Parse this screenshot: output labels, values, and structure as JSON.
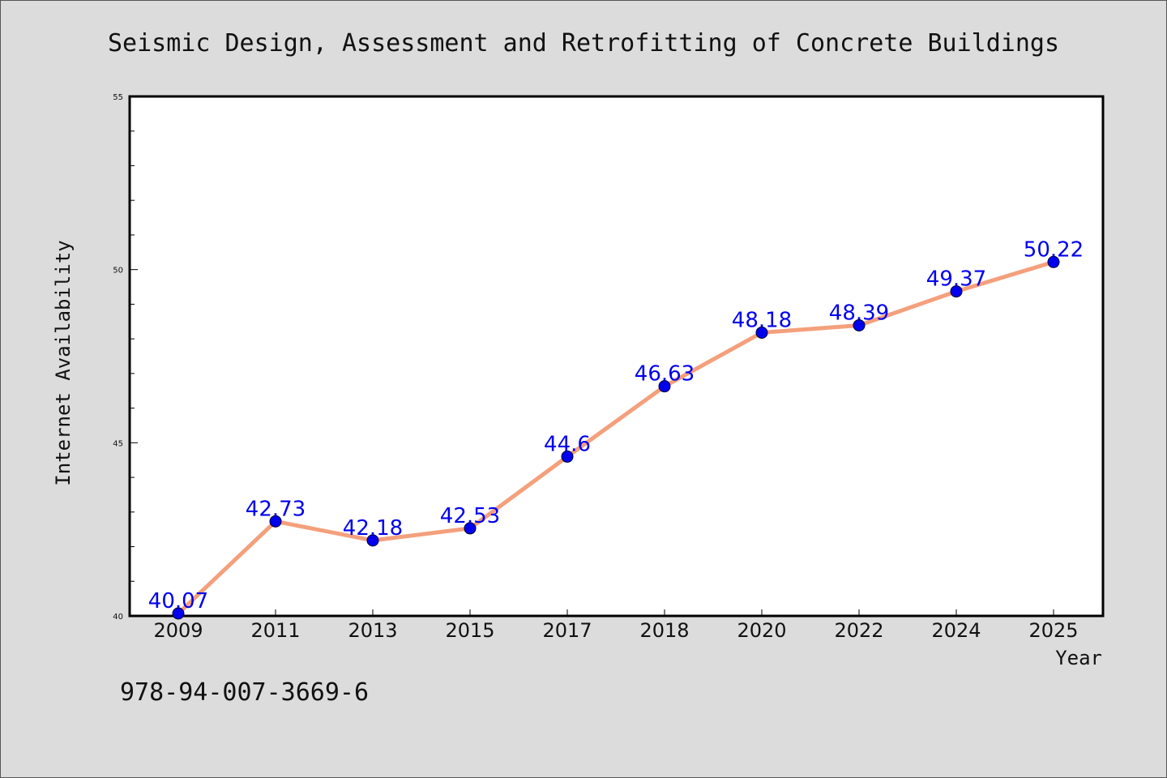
{
  "chart_data": {
    "type": "line",
    "title": "Seismic Design, Assessment and Retrofitting of Concrete Buildings",
    "xlabel": "Year",
    "ylabel": "Internet Availability",
    "categories": [
      "2009",
      "2011",
      "2013",
      "2015",
      "2017",
      "2018",
      "2020",
      "2022",
      "2024",
      "2025"
    ],
    "series": [
      {
        "values": [
          40.07,
          42.73,
          42.18,
          42.53,
          44.6,
          46.63,
          48.18,
          48.39,
          49.37,
          50.22
        ],
        "data_labels": [
          "40.07",
          "42.73",
          "42.18",
          "42.53",
          "44.6",
          "46.63",
          "48.18",
          "48.39",
          "49.37",
          "50.22"
        ],
        "line_color": "#f4a07c",
        "marker_color": "#0000ee"
      }
    ],
    "ylim": [
      40,
      55
    ],
    "yticks": [
      "40",
      "45",
      "50",
      "55"
    ],
    "grid": false,
    "legend": "none"
  },
  "footer": {
    "isbn": "978-94-007-3669-6"
  },
  "colors": {
    "background": "#dcdcdc",
    "plot_background": "#ffffff",
    "data_label": "#0000ee"
  }
}
